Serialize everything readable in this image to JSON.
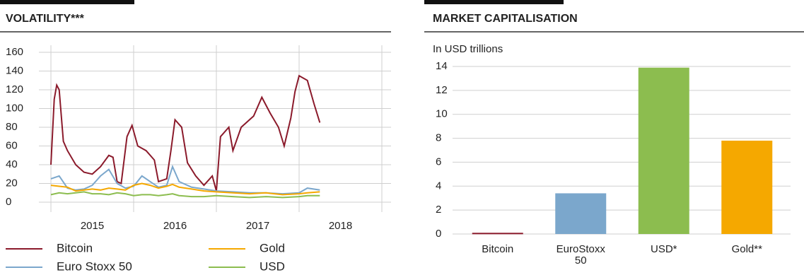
{
  "chart_data": [
    {
      "type": "line",
      "title": "VOLATILITY***",
      "xlim": [
        2015,
        2019
      ],
      "xticks": [
        {
          "value": 2015,
          "label": "2015"
        },
        {
          "value": 2016,
          "label": "2016"
        },
        {
          "value": 2017,
          "label": "2017"
        },
        {
          "value": 2018,
          "label": "2018"
        }
      ],
      "ylim": [
        0,
        160
      ],
      "yticks": [
        0,
        20,
        40,
        60,
        80,
        100,
        120,
        140,
        160
      ],
      "grid": true,
      "series": [
        {
          "name": "Bitcoin",
          "color": "#8b1a2b",
          "x": [
            2015.0,
            2015.04,
            2015.07,
            2015.1,
            2015.15,
            2015.2,
            2015.3,
            2015.4,
            2015.5,
            2015.6,
            2015.7,
            2015.75,
            2015.8,
            2015.85,
            2015.92,
            2015.98,
            2016.05,
            2016.15,
            2016.25,
            2016.3,
            2016.4,
            2016.45,
            2016.5,
            2016.58,
            2016.65,
            2016.75,
            2016.85,
            2016.95,
            2017.0,
            2017.05,
            2017.15,
            2017.2,
            2017.3,
            2017.45,
            2017.55,
            2017.65,
            2017.75,
            2017.82,
            2017.9,
            2017.95,
            2018.0,
            2018.1,
            2018.18,
            2018.25
          ],
          "values": [
            40,
            110,
            125,
            120,
            65,
            55,
            40,
            32,
            30,
            38,
            50,
            48,
            22,
            20,
            70,
            82,
            60,
            55,
            45,
            22,
            25,
            55,
            88,
            80,
            42,
            28,
            18,
            28,
            12,
            70,
            80,
            55,
            80,
            92,
            112,
            95,
            80,
            60,
            90,
            118,
            135,
            130,
            105,
            85
          ]
        },
        {
          "name": "Euro Stoxx 50",
          "color": "#7ba7cc",
          "x": [
            2015.0,
            2015.1,
            2015.2,
            2015.3,
            2015.4,
            2015.5,
            2015.6,
            2015.7,
            2015.8,
            2015.9,
            2016.0,
            2016.1,
            2016.2,
            2016.3,
            2016.4,
            2016.47,
            2016.55,
            2016.7,
            2016.85,
            2017.0,
            2017.2,
            2017.4,
            2017.6,
            2017.8,
            2018.0,
            2018.1,
            2018.25
          ],
          "values": [
            25,
            28,
            15,
            13,
            14,
            18,
            28,
            35,
            20,
            15,
            17,
            28,
            22,
            16,
            18,
            38,
            22,
            16,
            14,
            12,
            11,
            10,
            10,
            9,
            10,
            15,
            13
          ]
        },
        {
          "name": "Gold",
          "color": "#f5a800",
          "x": [
            2015.0,
            2015.1,
            2015.2,
            2015.3,
            2015.4,
            2015.5,
            2015.6,
            2015.7,
            2015.8,
            2015.9,
            2016.0,
            2016.1,
            2016.2,
            2016.3,
            2016.4,
            2016.47,
            2016.55,
            2016.7,
            2016.85,
            2017.0,
            2017.2,
            2017.4,
            2017.6,
            2017.8,
            2018.0,
            2018.1,
            2018.25
          ],
          "values": [
            18,
            17,
            16,
            12,
            13,
            14,
            13,
            15,
            14,
            13,
            18,
            20,
            18,
            15,
            17,
            19,
            16,
            14,
            12,
            11,
            10,
            9,
            10,
            8,
            9,
            10,
            11
          ]
        },
        {
          "name": "USD",
          "color": "#8cbd4f",
          "x": [
            2015.0,
            2015.1,
            2015.2,
            2015.3,
            2015.4,
            2015.5,
            2015.6,
            2015.7,
            2015.8,
            2015.9,
            2016.0,
            2016.1,
            2016.2,
            2016.3,
            2016.4,
            2016.47,
            2016.55,
            2016.7,
            2016.85,
            2017.0,
            2017.2,
            2017.4,
            2017.6,
            2017.8,
            2018.0,
            2018.1,
            2018.25
          ],
          "values": [
            8,
            10,
            9,
            10,
            11,
            9,
            9,
            8,
            10,
            9,
            7,
            8,
            8,
            7,
            8,
            9,
            7,
            6,
            6,
            7,
            6,
            5,
            6,
            5,
            6,
            7,
            7
          ]
        }
      ]
    },
    {
      "type": "bar",
      "title": "MARKET CAPITALISATION",
      "subtitle": "In USD trillions",
      "categories": [
        "Bitcoin",
        "EuroStoxx 50",
        "USD*",
        "Gold**"
      ],
      "values": [
        0.1,
        3.4,
        13.9,
        7.8
      ],
      "colors": [
        "#8b1a2b",
        "#7ba7cc",
        "#8cbd4f",
        "#f5a800"
      ],
      "ylim": [
        0,
        14
      ],
      "yticks": [
        0,
        2,
        4,
        6,
        8,
        10,
        12,
        14
      ],
      "grid": true
    }
  ]
}
